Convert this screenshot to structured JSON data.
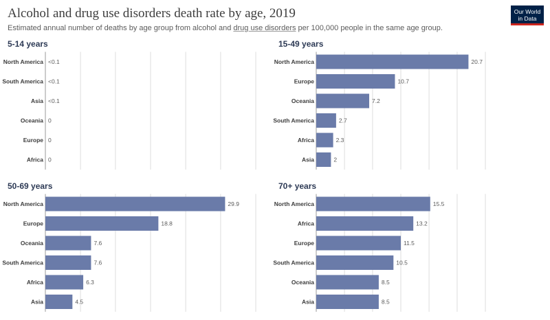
{
  "header": {
    "title": "Alcohol and drug use disorders death rate by age, 2019",
    "subtitle_pre": "Estimated annual number of deaths by age group from alcohol and ",
    "subtitle_link": "drug use disorders",
    "subtitle_post": " per 100,000 people in the same age group.",
    "logo_line1": "Our World",
    "logo_line2": "in Data"
  },
  "colors": {
    "bar": "#6a7ba9",
    "grid": "#dddddd",
    "axis": "#999999",
    "logo_bg": "#002147",
    "logo_accent": "#ce261e"
  },
  "chart_data": [
    {
      "type": "bar",
      "title": "5-14 years",
      "categories": [
        "North America",
        "South America",
        "Asia",
        "Oceania",
        "Europe",
        "Africa"
      ],
      "values": [
        0.05,
        0.05,
        0.05,
        0,
        0,
        0
      ],
      "value_labels": [
        "<0.1",
        "<0.1",
        "<0.1",
        "0",
        "0",
        "0"
      ],
      "xlim": [
        0,
        35
      ]
    },
    {
      "type": "bar",
      "title": "15-49 years",
      "categories": [
        "North America",
        "Europe",
        "Oceania",
        "South America",
        "Africa",
        "Asia"
      ],
      "values": [
        20.7,
        10.7,
        7.2,
        2.7,
        2.3,
        2
      ],
      "value_labels": [
        "20.7",
        "10.7",
        "7.2",
        "2.7",
        "2.3",
        "2"
      ],
      "xlim": [
        0,
        23
      ]
    },
    {
      "type": "bar",
      "title": "50-69 years",
      "categories": [
        "North America",
        "Europe",
        "Oceania",
        "South America",
        "Africa",
        "Asia"
      ],
      "values": [
        29.9,
        18.8,
        7.6,
        7.6,
        6.3,
        4.5
      ],
      "value_labels": [
        "29.9",
        "18.8",
        "7.6",
        "7.6",
        "6.3",
        "4.5"
      ],
      "xlim": [
        0,
        35
      ]
    },
    {
      "type": "bar",
      "title": "70+ years",
      "categories": [
        "North America",
        "Africa",
        "Europe",
        "South America",
        "Oceania",
        "Asia"
      ],
      "values": [
        15.5,
        13.2,
        11.5,
        10.5,
        8.5,
        8.5
      ],
      "value_labels": [
        "15.5",
        "13.2",
        "11.5",
        "10.5",
        "8.5",
        "8.5"
      ],
      "xlim": [
        0,
        23
      ]
    }
  ]
}
